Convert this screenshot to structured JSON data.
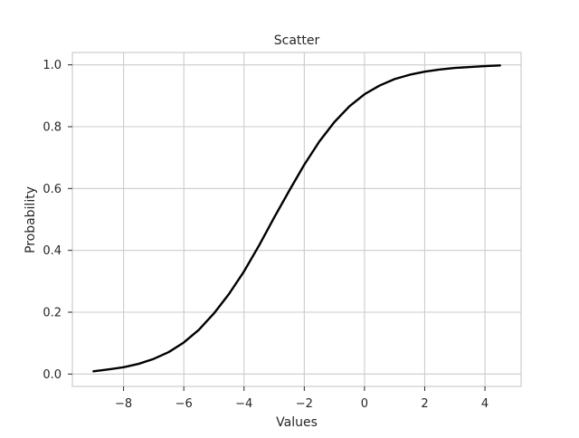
{
  "chart_data": {
    "type": "line",
    "title": "Scatter",
    "xlabel": "Values",
    "ylabel": "Probability",
    "xlim": [
      -9.7,
      5.2
    ],
    "ylim": [
      -0.04,
      1.04
    ],
    "xticks": [
      -8,
      -6,
      -4,
      -2,
      0,
      2,
      4
    ],
    "xtick_labels": [
      "−8",
      "−6",
      "−4",
      "−2",
      "0",
      "2",
      "4"
    ],
    "yticks": [
      0.0,
      0.2,
      0.4,
      0.6,
      0.8,
      1.0
    ],
    "ytick_labels": [
      "0.0",
      "0.2",
      "0.4",
      "0.6",
      "0.8",
      "1.0"
    ],
    "grid": true,
    "series": [
      {
        "color": "#000000",
        "x": [
          -9.0,
          -8.5,
          -8.0,
          -7.5,
          -7.0,
          -6.5,
          -6.0,
          -5.5,
          -5.0,
          -4.5,
          -4.0,
          -3.5,
          -3.0,
          -2.5,
          -2.0,
          -1.5,
          -1.0,
          -0.5,
          0.0,
          0.5,
          1.0,
          1.5,
          2.0,
          2.5,
          3.0,
          3.5,
          4.0,
          4.5
        ],
        "y": [
          0.009,
          0.015,
          0.022,
          0.033,
          0.049,
          0.071,
          0.102,
          0.143,
          0.196,
          0.259,
          0.332,
          0.416,
          0.506,
          0.593,
          0.677,
          0.752,
          0.815,
          0.866,
          0.905,
          0.933,
          0.954,
          0.968,
          0.978,
          0.985,
          0.99,
          0.993,
          0.996,
          0.998
        ]
      }
    ]
  }
}
